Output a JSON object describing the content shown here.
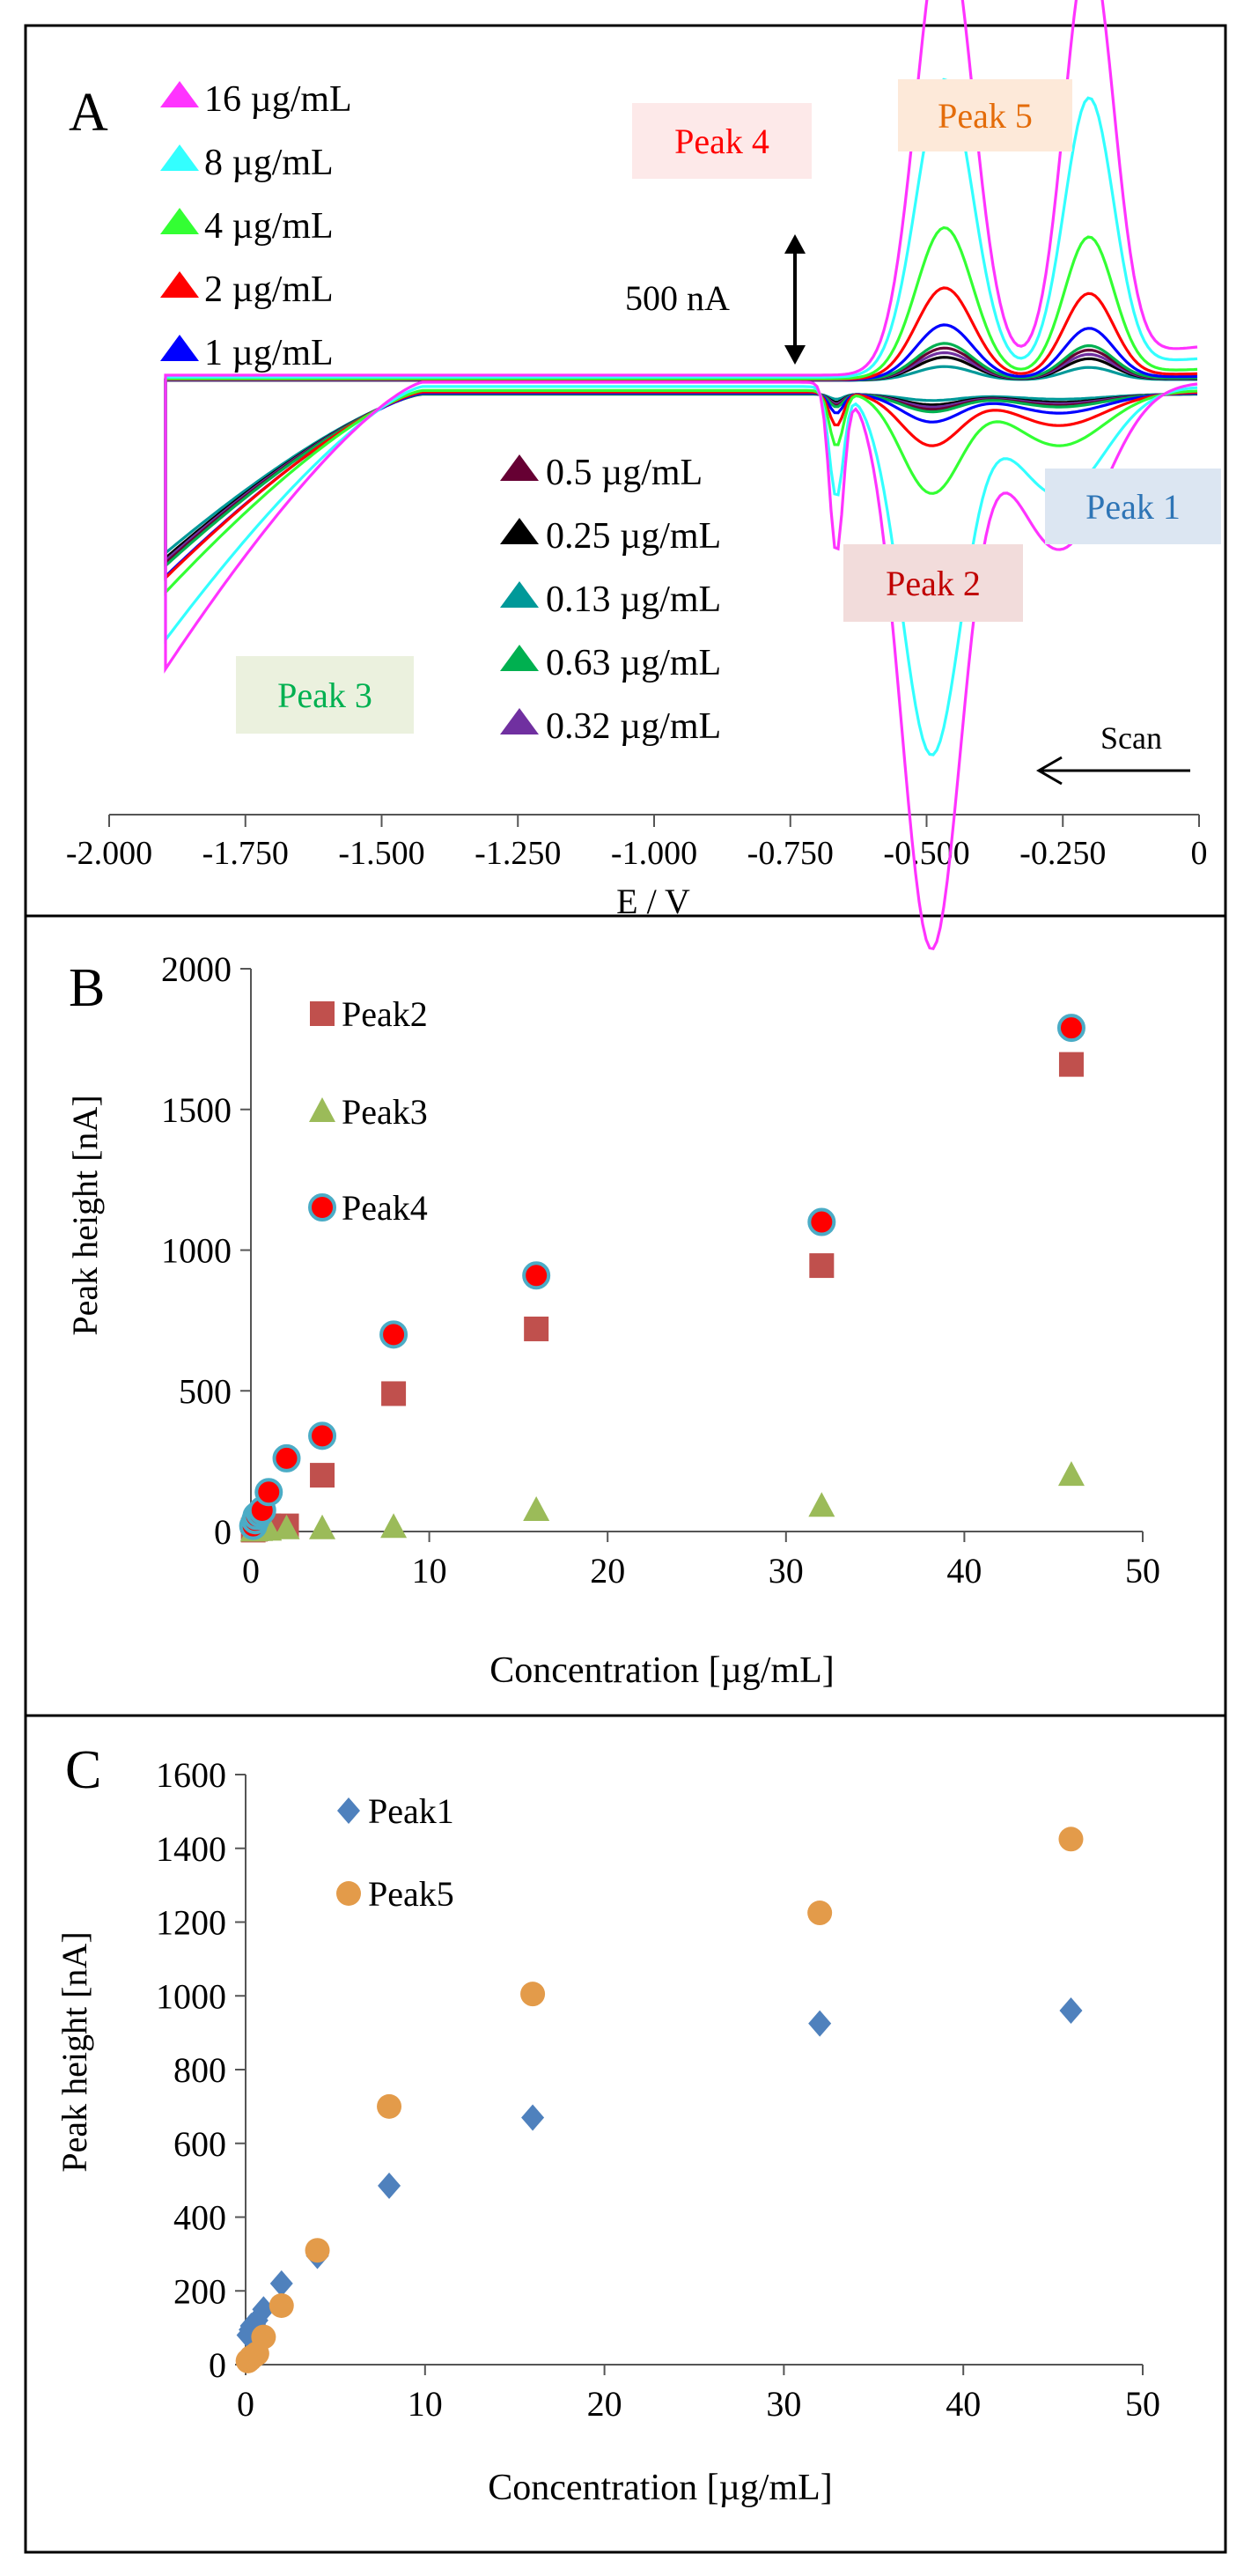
{
  "chart_data": [
    {
      "panel": "A",
      "type": "line",
      "panel_label": "A",
      "xlabel": "E / V",
      "ylabel": "",
      "xlim": [
        -2.0,
        0
      ],
      "xticks": [
        "-2.000",
        "-1.750",
        "-1.500",
        "-1.250",
        "-1.000",
        "-0.750",
        "-0.500",
        "-0.250",
        "0"
      ],
      "scale_bar_label": "500 nA",
      "scan_label": "Scan",
      "peak_labels": [
        {
          "text": "Peak 1",
          "color": "#2e75b6",
          "bg": "#dce6f2"
        },
        {
          "text": "Peak 2",
          "color": "#c00000",
          "bg": "#f2dcdb"
        },
        {
          "text": "Peak 3",
          "color": "#00b050",
          "bg": "#ebf1de"
        },
        {
          "text": "Peak 4",
          "color": "#ff0000",
          "bg": "#fde9e9"
        },
        {
          "text": "Peak 5",
          "color": "#e46c0a",
          "bg": "#fde9d9"
        }
      ],
      "series": [
        {
          "name": "16 µg/mL",
          "color": "#ff33ff",
          "scale": 1.0
        },
        {
          "name": "8 µg/mL",
          "color": "#33ffff",
          "scale": 0.65
        },
        {
          "name": "4 µg/mL",
          "color": "#33ff33",
          "scale": 0.33
        },
        {
          "name": "2 µg/mL",
          "color": "#ff0000",
          "scale": 0.2
        },
        {
          "name": "1 µg/mL",
          "color": "#0000ff",
          "scale": 0.12
        },
        {
          "name": "0.5 µg/mL",
          "color": "#660033",
          "scale": 0.07
        },
        {
          "name": "0.25 µg/mL",
          "color": "#000000",
          "scale": 0.05
        },
        {
          "name": "0.13 µg/mL",
          "color": "#009999",
          "scale": 0.03
        },
        {
          "name": "0.63 µg/mL",
          "color": "#00b050",
          "scale": 0.08
        },
        {
          "name": "0.32 µg/mL",
          "color": "#7030a0",
          "scale": 0.06
        }
      ]
    },
    {
      "panel": "B",
      "type": "scatter",
      "panel_label": "B",
      "xlabel": "Concentration [µg/mL]",
      "ylabel": "Peak height [nA]",
      "xlim": [
        0,
        50
      ],
      "ylim": [
        0,
        2000
      ],
      "xticks": [
        "0",
        "10",
        "20",
        "30",
        "40",
        "50"
      ],
      "yticks": [
        "0",
        "500",
        "1000",
        "1500",
        "2000"
      ],
      "series": [
        {
          "name": "Peak2",
          "marker": "square",
          "color": "#c0504d",
          "x": [
            0.13,
            0.25,
            0.32,
            0.5,
            0.63,
            1,
            2,
            4,
            8,
            16,
            32,
            46
          ],
          "y": [
            5,
            8,
            10,
            12,
            15,
            20,
            20,
            200,
            490,
            720,
            945,
            1660
          ]
        },
        {
          "name": "Peak3",
          "marker": "triangle",
          "color": "#9bbb59",
          "x": [
            0.13,
            0.25,
            0.5,
            1,
            2,
            4,
            8,
            16,
            32,
            46
          ],
          "y": [
            2,
            3,
            4,
            5,
            10,
            10,
            15,
            75,
            90,
            200
          ]
        },
        {
          "name": "Peak4",
          "marker": "circle",
          "color": "#ff0000",
          "edge": "#4bacc6",
          "x": [
            0.13,
            0.25,
            0.32,
            0.5,
            0.63,
            1,
            2,
            4,
            8,
            16,
            32,
            46
          ],
          "y": [
            20,
            40,
            55,
            65,
            75,
            140,
            260,
            340,
            700,
            910,
            1100,
            1790
          ]
        }
      ]
    },
    {
      "panel": "C",
      "type": "scatter",
      "panel_label": "C",
      "xlabel": "Concentration [µg/mL]",
      "ylabel": "Peak height [nA]",
      "xlim": [
        0,
        50
      ],
      "ylim": [
        0,
        1600
      ],
      "xticks": [
        "0",
        "10",
        "20",
        "30",
        "40",
        "50"
      ],
      "yticks": [
        "0",
        "200",
        "400",
        "600",
        "800",
        "1000",
        "1200",
        "1400",
        "1600"
      ],
      "series": [
        {
          "name": "Peak1",
          "marker": "diamond",
          "color": "#4f81bd",
          "x": [
            0.13,
            0.25,
            0.32,
            0.5,
            0.63,
            1,
            2,
            4,
            8,
            16,
            32,
            46
          ],
          "y": [
            80,
            95,
            105,
            110,
            120,
            150,
            220,
            295,
            485,
            670,
            925,
            960
          ]
        },
        {
          "name": "Peak5",
          "marker": "circle",
          "color": "#e39b4a",
          "x": [
            0.13,
            0.25,
            0.32,
            0.5,
            0.63,
            1,
            2,
            4,
            8,
            16,
            32,
            46
          ],
          "y": [
            10,
            15,
            20,
            25,
            30,
            75,
            160,
            310,
            700,
            1005,
            1225,
            1425
          ]
        }
      ]
    }
  ]
}
